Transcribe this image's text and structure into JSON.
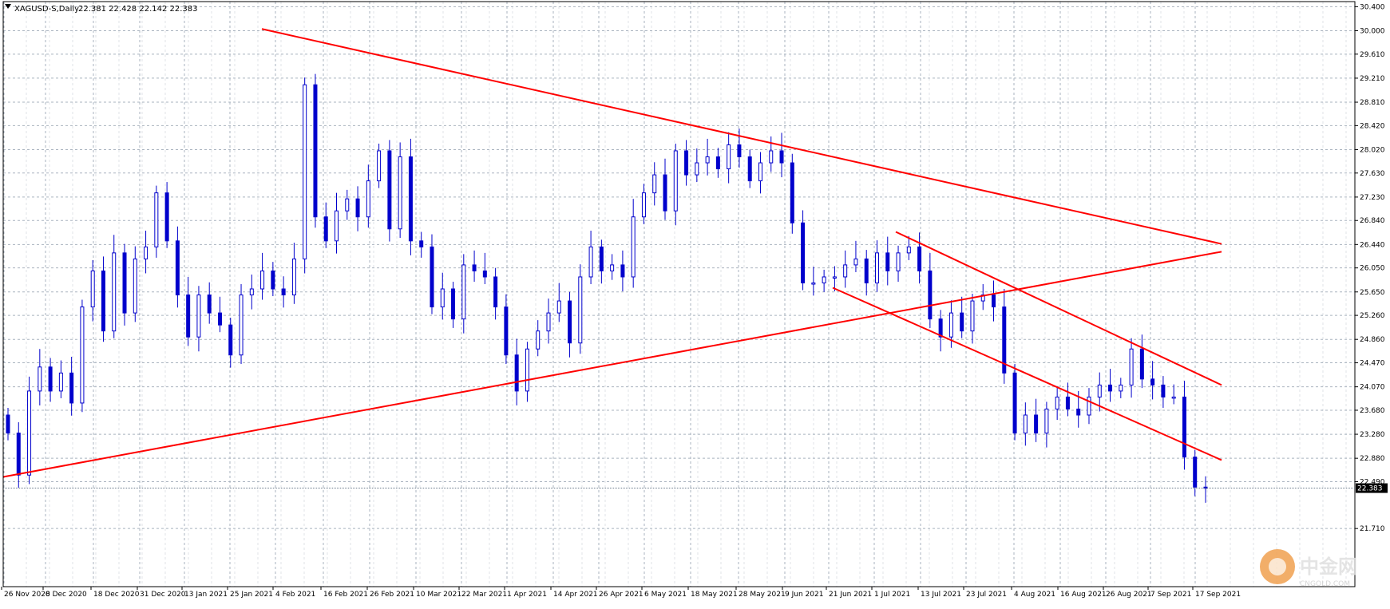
{
  "header": {
    "symbol": "XAGUSD-S,Daily",
    "ohlc": "22.381 22.428 22.142 22.383"
  },
  "current_price_label": "22.383",
  "watermark": {
    "text": "中金网",
    "sub": "CNGOLD.COM"
  },
  "colors": {
    "candle": "#0000cc",
    "trendline": "#ff0000",
    "grid": "#a9b3bf",
    "price_tag_bg": "#000000"
  },
  "chart_data": {
    "type": "candlestick",
    "title": "",
    "y_axis_position": "right",
    "ylim": [
      21.71,
      30.4
    ],
    "yticks": [
      30.4,
      30.0,
      29.61,
      29.21,
      28.81,
      28.42,
      28.02,
      27.63,
      27.23,
      26.84,
      26.44,
      26.05,
      25.65,
      25.26,
      24.86,
      24.47,
      24.07,
      23.68,
      23.28,
      22.88,
      22.49,
      21.71
    ],
    "ytick_labels": [
      "30.400",
      "30.000",
      "29.610",
      "29.210",
      "28.810",
      "28.420",
      "28.020",
      "27.630",
      "27.230",
      "26.840",
      "26.440",
      "26.050",
      "25.650",
      "25.260",
      "24.860",
      "24.470",
      "24.070",
      "23.680",
      "23.280",
      "22.880",
      "22.490",
      "21.710"
    ],
    "xtick_labels": [
      "26 Nov 2020",
      "8 Dec 2020",
      "18 Dec 2020",
      "31 Dec 2020",
      "13 Jan 2021",
      "25 Jan 2021",
      "4 Feb 2021",
      "16 Feb 2021",
      "26 Feb 2021",
      "10 Mar 2021",
      "22 Mar 2021",
      "1 Apr 2021",
      "14 Apr 2021",
      "26 Apr 2021",
      "6 May 2021",
      "18 May 2021",
      "28 May 2021",
      "9 Jun 2021",
      "21 Jun 2021",
      "1 Jul 2021",
      "13 Jul 2021",
      "23 Jul 2021",
      "4 Aug 2021",
      "16 Aug 2021",
      "26 Aug 2021",
      "7 Sep 2021",
      "17 Sep 2021"
    ],
    "grid": true,
    "close_path": [
      23.3,
      22.6,
      24.0,
      24.4,
      24.0,
      24.3,
      23.8,
      25.4,
      26.0,
      25.0,
      26.3,
      25.3,
      26.2,
      26.4,
      27.3,
      26.5,
      25.6,
      24.9,
      25.6,
      25.3,
      25.1,
      24.6,
      25.6,
      25.7,
      26.0,
      25.7,
      25.6,
      26.2,
      29.1,
      26.9,
      26.5,
      27.0,
      27.2,
      26.9,
      27.5,
      28.0,
      26.7,
      27.9,
      26.5,
      26.4,
      25.4,
      25.7,
      25.2,
      26.1,
      26.0,
      25.9,
      25.4,
      24.6,
      24.0,
      24.7,
      25.0,
      25.3,
      25.5,
      24.8,
      25.9,
      26.4,
      26.0,
      26.1,
      25.9,
      26.9,
      27.3,
      27.6,
      27.0,
      28.0,
      27.6,
      27.8,
      27.9,
      27.7,
      28.1,
      27.9,
      27.5,
      27.8,
      28.0,
      27.8,
      26.8,
      25.8,
      25.8,
      25.9,
      25.9,
      26.1,
      26.2,
      25.8,
      26.3,
      26.0,
      26.3,
      26.4,
      26.0,
      25.2,
      24.9,
      25.3,
      25.0,
      25.5,
      25.6,
      25.4,
      24.3,
      23.3,
      23.6,
      23.3,
      23.7,
      23.9,
      23.7,
      23.6,
      23.9,
      24.1,
      24.0,
      24.1,
      24.7,
      24.2,
      24.1,
      23.9,
      23.9,
      22.9,
      22.4,
      22.38
    ],
    "trendlines": [
      {
        "from": [
          "25 Jan 2021",
          30.03
        ],
        "to": [
          "17 Sep 2021",
          26.45
        ]
      },
      {
        "from": [
          "26 Nov 2020",
          22.57
        ],
        "to": [
          "17 Sep 2021",
          26.32
        ]
      },
      {
        "from": [
          "1 Jul 2021",
          26.65
        ],
        "to": [
          "17 Sep 2021",
          24.1
        ]
      },
      {
        "from": [
          "21 Jun 2021",
          25.72
        ],
        "to": [
          "17 Sep 2021",
          22.85
        ]
      }
    ],
    "last_price": 22.383
  }
}
